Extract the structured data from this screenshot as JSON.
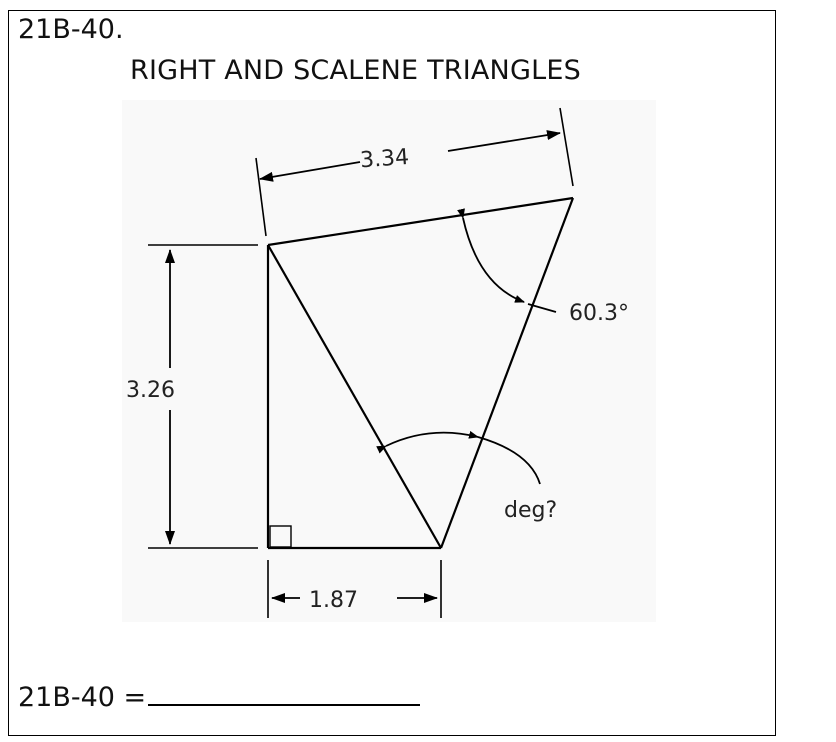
{
  "header": {
    "problem_id": "21B-40.",
    "title": "RIGHT AND SCALENE TRIANGLES"
  },
  "diagram": {
    "dimension_top": "3.34",
    "dimension_left": "3.26",
    "dimension_bottom": "1.87",
    "angle_known": "60.3°",
    "angle_unknown": "deg?"
  },
  "answer": {
    "label": "21B-40 ="
  }
}
